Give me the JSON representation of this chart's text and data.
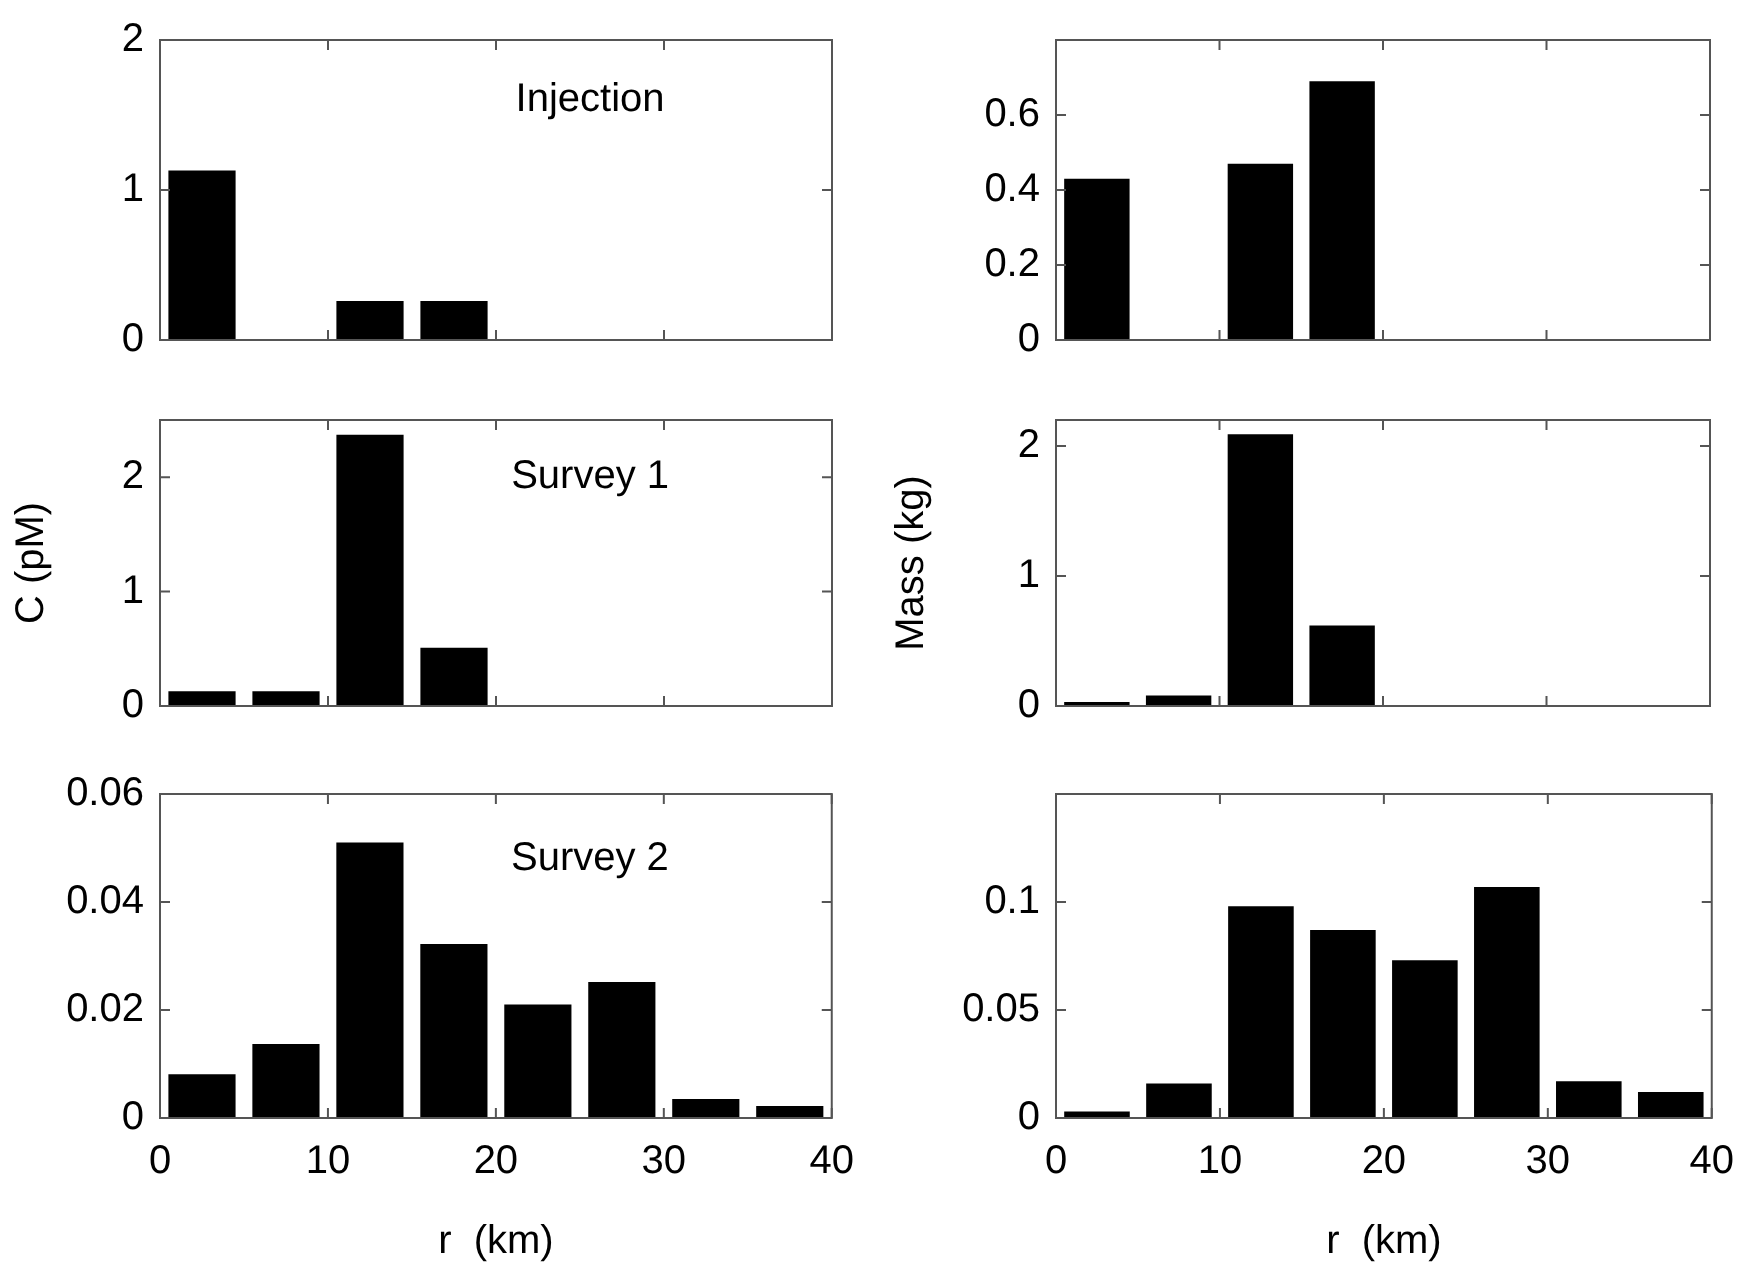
{
  "chart_data": [
    {
      "type": "bar",
      "annotations": [
        "Injection"
      ],
      "x": [
        2.5,
        7.5,
        12.5,
        17.5,
        22.5,
        27.5,
        32.5,
        37.5
      ],
      "values": [
        1.13,
        0,
        0.26,
        0.26,
        0,
        0,
        0,
        0
      ],
      "color": "#000000",
      "xlim": [
        0,
        40
      ],
      "xticks": [
        0,
        10,
        20,
        30,
        40
      ],
      "ylim": [
        0,
        2
      ],
      "yticks": [
        0,
        1,
        2
      ],
      "tick_labels": "y",
      "grid": false,
      "legend": false
    },
    {
      "type": "bar",
      "x": [
        2.5,
        7.5,
        12.5,
        17.5,
        22.5,
        27.5,
        32.5,
        37.5
      ],
      "values": [
        0.43,
        0,
        0.47,
        0.69,
        0,
        0,
        0,
        0
      ],
      "color": "#000000",
      "xlim": [
        0,
        40
      ],
      "xticks": [
        0,
        10,
        20,
        30,
        40
      ],
      "ylim": [
        0,
        0.8
      ],
      "yticks": [
        0,
        0.2,
        0.4,
        0.6
      ],
      "tick_labels": "y",
      "grid": false,
      "legend": false
    },
    {
      "type": "bar",
      "annotations": [
        "Survey 1"
      ],
      "ylabel": "C (pM)",
      "x": [
        2.5,
        7.5,
        12.5,
        17.5,
        22.5,
        27.5,
        32.5,
        37.5
      ],
      "values": [
        0.13,
        0.13,
        2.37,
        0.51,
        0,
        0,
        0,
        0
      ],
      "color": "#000000",
      "xlim": [
        0,
        40
      ],
      "xticks": [
        0,
        10,
        20,
        30,
        40
      ],
      "ylim": [
        0,
        2.5
      ],
      "yticks": [
        0,
        1,
        2
      ],
      "tick_labels": "y",
      "grid": false,
      "legend": false
    },
    {
      "type": "bar",
      "ylabel": "Mass (kg)",
      "x": [
        2.5,
        7.5,
        12.5,
        17.5,
        22.5,
        27.5,
        32.5,
        37.5
      ],
      "values": [
        0.03,
        0.08,
        2.09,
        0.62,
        0,
        0,
        0,
        0
      ],
      "color": "#000000",
      "xlim": [
        0,
        40
      ],
      "xticks": [
        0,
        10,
        20,
        30,
        40
      ],
      "ylim": [
        0,
        2.2
      ],
      "yticks": [
        0,
        1,
        2
      ],
      "tick_labels": "y",
      "grid": false,
      "legend": false
    },
    {
      "type": "bar",
      "annotations": [
        "Survey 2"
      ],
      "xlabel": "r  (km)",
      "x": [
        2.5,
        7.5,
        12.5,
        17.5,
        22.5,
        27.5,
        32.5,
        37.5
      ],
      "values": [
        0.0081,
        0.0137,
        0.051,
        0.0322,
        0.021,
        0.0252,
        0.0035,
        0.0022
      ],
      "color": "#000000",
      "xlim": [
        0,
        40
      ],
      "xticks": [
        0,
        10,
        20,
        30,
        40
      ],
      "ylim": [
        0,
        0.06
      ],
      "yticks": [
        0,
        0.02,
        0.04,
        0.06
      ],
      "grid": false,
      "legend": false
    },
    {
      "type": "bar",
      "xlabel": "r  (km)",
      "x": [
        2.5,
        7.5,
        12.5,
        17.5,
        22.5,
        27.5,
        32.5,
        37.5
      ],
      "values": [
        0.003,
        0.016,
        0.098,
        0.087,
        0.073,
        0.107,
        0.017,
        0.012
      ],
      "color": "#000000",
      "xlim": [
        0,
        40
      ],
      "xticks": [
        0,
        10,
        20,
        30,
        40
      ],
      "ylim": [
        0,
        0.15
      ],
      "yticks": [
        0,
        0.05,
        0.1
      ],
      "grid": false,
      "legend": false
    }
  ]
}
